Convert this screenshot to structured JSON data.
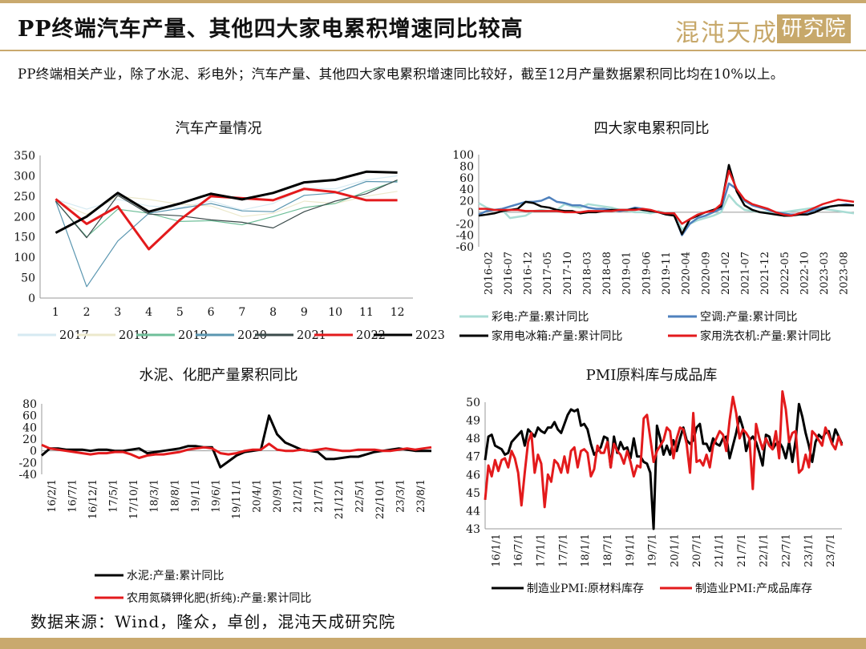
{
  "header": {
    "title": "PP终端汽车产量、其他四大家电累积增速同比较高",
    "brand_text": "混沌天成",
    "brand_tag": "研究院"
  },
  "intro": "PP终端相关产业，除了水泥、彩电外；汽车产量、其他四大家电累积增速同比较好，截至12月产量数据累积同比均在10%以上。",
  "footer": {
    "source": "数据来源：Wind，隆众，卓创，混沌天成研究院"
  },
  "colors": {
    "gold": "#c9a96e",
    "red": "#e31a1c",
    "black": "#000000"
  },
  "chart_data": [
    {
      "type": "line",
      "title": "汽车产量情况",
      "x": [
        1,
        2,
        3,
        4,
        5,
        6,
        7,
        8,
        9,
        10,
        11,
        12
      ],
      "ylim": [
        0,
        350
      ],
      "yticks": [
        0,
        50,
        100,
        150,
        200,
        250,
        300,
        350
      ],
      "legend": "bottom",
      "series": [
        {
          "name": "2017",
          "color": "#d6eaf2",
          "width": 1.2,
          "values": [
            242,
            218,
            242,
            226,
            222,
            238,
            216,
            232,
            270,
            268,
            290,
            300
          ]
        },
        {
          "name": "2018",
          "color": "#ece9cc",
          "width": 1.2,
          "values": [
            238,
            205,
            250,
            242,
            230,
            226,
            200,
            208,
            238,
            232,
            250,
            262
          ]
        },
        {
          "name": "2019",
          "color": "#6fbf99",
          "width": 1.2,
          "values": [
            238,
            150,
            218,
            208,
            188,
            190,
            180,
            200,
            222,
            232,
            262,
            288
          ]
        },
        {
          "name": "2020",
          "color": "#5a96b0",
          "width": 1.2,
          "values": [
            238,
            28,
            140,
            208,
            220,
            232,
            214,
            212,
            252,
            258,
            286,
            285
          ]
        },
        {
          "name": "2021",
          "color": "#3b4b4b",
          "width": 1.2,
          "values": [
            238,
            148,
            252,
            206,
            202,
            192,
            186,
            172,
            212,
            238,
            256,
            290
          ]
        },
        {
          "name": "2022",
          "color": "#e31a1c",
          "width": 3,
          "values": [
            243,
            182,
            225,
            120,
            192,
            250,
            245,
            240,
            268,
            260,
            240,
            240
          ]
        },
        {
          "name": "2023",
          "color": "#000000",
          "width": 3,
          "values": [
            160,
            200,
            258,
            212,
            232,
            256,
            242,
            258,
            284,
            290,
            310,
            308
          ]
        }
      ]
    },
    {
      "type": "line",
      "title": "四大家电累积同比",
      "x_ticks": [
        "2016-02",
        "2016-07",
        "2016-12",
        "2017-05",
        "2017-10",
        "2018-03",
        "2018-08",
        "2019-01",
        "2019-06",
        "2019-11",
        "2020-04",
        "2020-09",
        "2021-02",
        "2021-07",
        "2021-12",
        "2022-05",
        "2022-10",
        "2023-03",
        "2023-08"
      ],
      "ylim": [
        -60,
        100
      ],
      "yticks": [
        -60,
        -40,
        -20,
        0,
        20,
        40,
        60,
        80,
        100
      ],
      "legend": "bottom",
      "series": [
        {
          "name": "彩电:产量:累计同比",
          "color": "#a8dcd4",
          "width": 2.5,
          "values": [
            16,
            8,
            4,
            4,
            -10,
            -8,
            -6,
            2,
            4,
            2,
            4,
            14,
            10,
            8,
            14,
            12,
            10,
            8,
            4,
            2,
            0,
            0,
            -2,
            2,
            -2,
            -2,
            -30,
            -20,
            -14,
            -10,
            -6,
            0,
            30,
            14,
            4,
            2,
            0,
            0,
            -2,
            0,
            2,
            4,
            6,
            8,
            6,
            4,
            2,
            0,
            -2
          ]
        },
        {
          "name": "空调:产量:累计同比",
          "color": "#4f81bd",
          "width": 2.5,
          "values": [
            -4,
            2,
            4,
            6,
            10,
            14,
            18,
            18,
            20,
            26,
            18,
            16,
            12,
            12,
            8,
            6,
            6,
            4,
            2,
            4,
            8,
            6,
            2,
            0,
            -4,
            -4,
            -40,
            -20,
            -10,
            -6,
            0,
            6,
            50,
            40,
            20,
            12,
            8,
            4,
            0,
            -2,
            -4,
            -4,
            0,
            4,
            8,
            10,
            12,
            14,
            12
          ]
        },
        {
          "name": "家用电冰箱:产量:累计同比",
          "color": "#000000",
          "width": 2.5,
          "values": [
            -6,
            -4,
            -2,
            2,
            4,
            6,
            18,
            16,
            10,
            8,
            4,
            2,
            2,
            -2,
            0,
            0,
            2,
            4,
            4,
            4,
            6,
            4,
            2,
            0,
            -4,
            -6,
            -38,
            -12,
            -6,
            0,
            4,
            10,
            82,
            36,
            12,
            4,
            0,
            -2,
            -4,
            -6,
            -6,
            -4,
            -4,
            0,
            6,
            10,
            12,
            12,
            12
          ]
        },
        {
          "name": "家用洗衣机:产量:累计同比",
          "color": "#e31a1c",
          "width": 2.5,
          "values": [
            6,
            6,
            4,
            4,
            4,
            4,
            2,
            2,
            2,
            2,
            2,
            0,
            0,
            0,
            2,
            2,
            2,
            2,
            4,
            4,
            4,
            6,
            4,
            0,
            -2,
            -2,
            -20,
            -12,
            -4,
            0,
            2,
            14,
            72,
            40,
            22,
            14,
            10,
            6,
            0,
            -4,
            -6,
            -2,
            2,
            8,
            14,
            18,
            22,
            20,
            18
          ]
        }
      ]
    },
    {
      "type": "line",
      "title": "水泥、化肥产量累积同比",
      "x_ticks": [
        "16/2/1",
        "16/7/1",
        "16/12/1",
        "17/5/1",
        "17/10/1",
        "18/3/1",
        "18/8/1",
        "19/1/1",
        "19/6/1",
        "19/11/1",
        "20/4/1",
        "20/9/1",
        "21/2/1",
        "21/7/1",
        "21/12/1",
        "22/5/1",
        "22/10/1",
        "23/3/1",
        "23/8/1"
      ],
      "ylim": [
        -40,
        80
      ],
      "yticks": [
        -40,
        -20,
        0,
        20,
        40,
        60,
        80
      ],
      "legend": "bottom",
      "series": [
        {
          "name": "水泥:产量:累计同比",
          "color": "#000000",
          "width": 3,
          "values": [
            -8,
            4,
            4,
            2,
            2,
            2,
            0,
            2,
            2,
            0,
            0,
            2,
            4,
            -4,
            -2,
            0,
            2,
            4,
            8,
            8,
            6,
            6,
            -28,
            -18,
            -8,
            -2,
            0,
            2,
            60,
            28,
            14,
            8,
            2,
            0,
            -2,
            -14,
            -14,
            -12,
            -10,
            -10,
            -6,
            -2,
            0,
            2,
            4,
            2,
            0,
            0,
            0
          ]
        },
        {
          "name": "农用氮磷钾化肥(折纯):产量:累计同比",
          "color": "#e31a1c",
          "width": 3,
          "values": [
            10,
            4,
            2,
            0,
            -2,
            -4,
            -6,
            -4,
            -4,
            -2,
            -2,
            -6,
            -12,
            -8,
            -6,
            -6,
            -4,
            -2,
            2,
            4,
            6,
            4,
            -4,
            -6,
            -4,
            0,
            2,
            2,
            12,
            2,
            0,
            0,
            2,
            0,
            2,
            4,
            2,
            0,
            0,
            2,
            2,
            2,
            0,
            0,
            2,
            4,
            2,
            4,
            6
          ]
        }
      ]
    },
    {
      "type": "line",
      "title": "PMI原料库与成品库",
      "x_ticks": [
        "16/1/1",
        "16/7/1",
        "17/1/1",
        "17/7/1",
        "18/1/1",
        "18/7/1",
        "19/1/1",
        "19/7/1",
        "20/1/1",
        "20/7/1",
        "21/1/1",
        "21/7/1",
        "22/1/1",
        "22/7/1",
        "23/1/1",
        "23/7/1"
      ],
      "ylim": [
        43,
        50
      ],
      "yticks": [
        43,
        44,
        45,
        46,
        47,
        48,
        49,
        50
      ],
      "legend": "bottom",
      "series": [
        {
          "name": "制造业PMI:原材料库存",
          "color": "#000000",
          "width": 3,
          "values": [
            46.8,
            48.1,
            48.2,
            47.6,
            47.5,
            47.4,
            47.1,
            47.2,
            47.8,
            48.0,
            48.2,
            48.4,
            47.6,
            48.5,
            48.3,
            48.1,
            48.6,
            48.4,
            48.3,
            48.6,
            48.6,
            48.9,
            48.5,
            48.3,
            48.8,
            49.3,
            49.6,
            49.5,
            49.6,
            48.7,
            48.8,
            48.5,
            47.7,
            47.1,
            47.3,
            47.5,
            48.1,
            48.0,
            46.4,
            48.1,
            47.2,
            47.8,
            47.4,
            47.5,
            46.9,
            48.0,
            47.0,
            47.0,
            46.7,
            46.6,
            46.1,
            43.0,
            48.7,
            48.0,
            47.1,
            47.6,
            47.1,
            47.9,
            47.3,
            48.0,
            48.6,
            47.9,
            47.7,
            47.9,
            48.6,
            48.8,
            47.7,
            47.7,
            47.3,
            48.0,
            47.7,
            47.6,
            48.0,
            48.1,
            46.9,
            47.6,
            48.3,
            49.2,
            48.6,
            47.3,
            47.9,
            48.1,
            47.8,
            47.2,
            46.5,
            48.2,
            48.1,
            47.4,
            47.7,
            47.8,
            47.5,
            46.9,
            47.8,
            46.7,
            47.9,
            49.9,
            49.2,
            48.3,
            47.6,
            46.7,
            47.8,
            48.2,
            48.0,
            48.3,
            48.4,
            47.7,
            48.5,
            48.1,
            47.7
          ]
        },
        {
          "name": "制造业PMI:产成品库存",
          "color": "#e31a1c",
          "width": 3,
          "values": [
            44.6,
            46.5,
            45.9,
            46.8,
            46.2,
            46.8,
            46.9,
            46.4,
            47.3,
            46.9,
            46.1,
            44.3,
            46.1,
            47.8,
            48.3,
            46.1,
            47.1,
            46.6,
            44.2,
            46.0,
            45.6,
            46.8,
            46.6,
            46.1,
            47.0,
            46.1,
            47.3,
            47.5,
            46.4,
            47.3,
            47.4,
            47.2,
            45.9,
            46.3,
            47.6,
            47.2,
            47.2,
            47.8,
            46.4,
            47.7,
            47.3,
            47.1,
            46.6,
            47.3,
            46.7,
            45.9,
            46.5,
            46.4,
            49.1,
            49.3,
            48.0,
            46.7,
            47.3,
            47.6,
            47.9,
            48.6,
            48.4,
            46.9,
            48.0,
            48.6,
            48.5,
            47.7,
            46.1,
            49.4,
            46.7,
            46.8,
            46.5,
            47.1,
            46.4,
            47.6,
            48.0,
            48.4,
            48.2,
            47.3,
            49.0,
            50.3,
            49.4,
            48.0,
            48.5,
            48.3,
            48.0,
            45.2,
            48.8,
            48.0,
            47.4,
            48.0,
            47.6,
            47.4,
            48.4,
            46.9,
            50.6,
            49.6,
            47.8,
            48.3,
            48.4,
            46.1,
            46.3,
            47.1,
            46.4,
            48.4,
            48.2,
            47.9,
            47.6,
            48.6,
            48.2,
            47.7,
            47.4,
            48.1,
            47.6
          ]
        }
      ]
    }
  ]
}
